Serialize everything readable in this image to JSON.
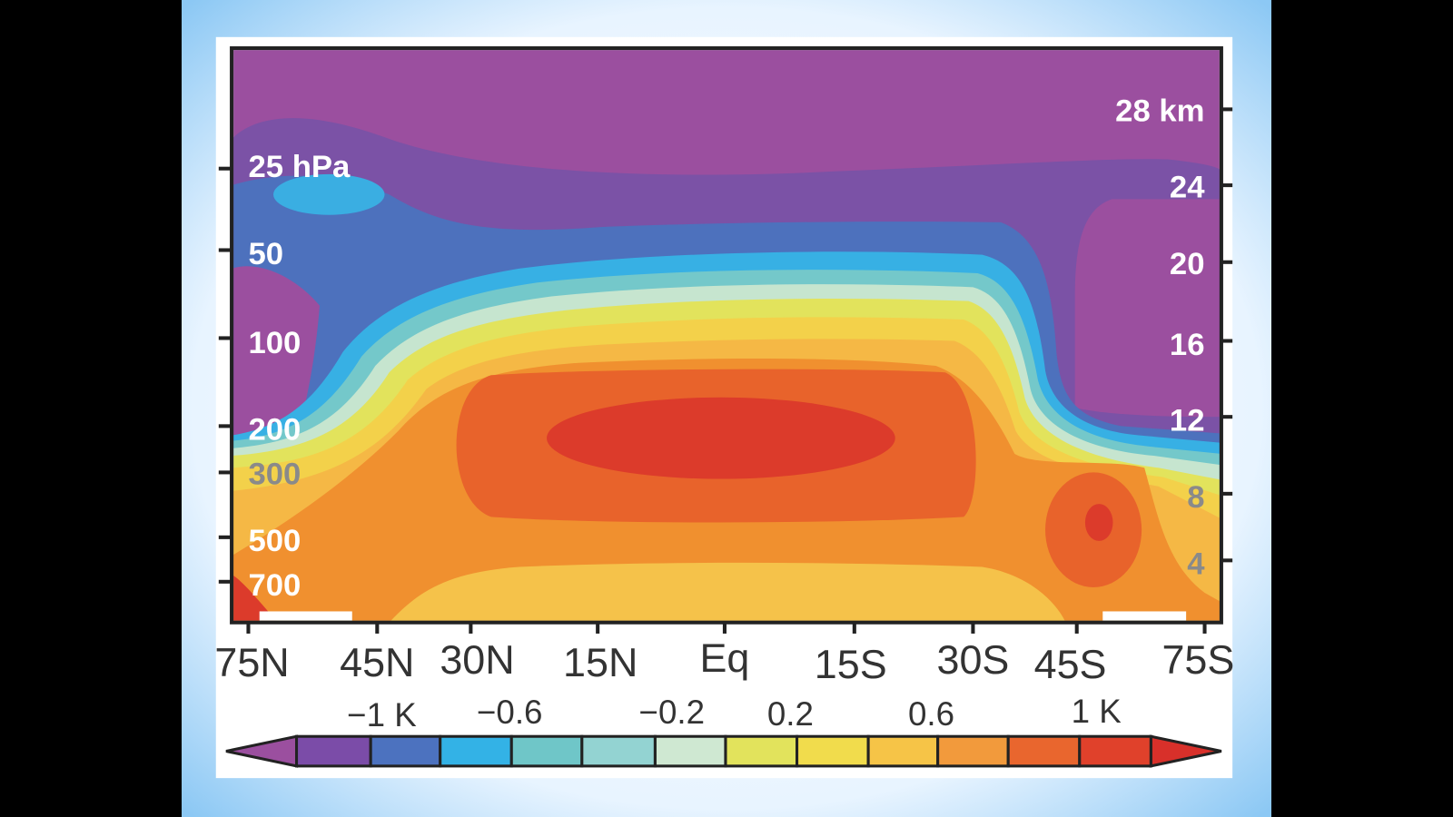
{
  "figure": {
    "left_axis_labels": [
      "25 hPa",
      "50",
      "100",
      "200",
      "300",
      "500",
      "700"
    ],
    "right_axis_labels": [
      "28 km",
      "24",
      "20",
      "16",
      "12",
      "8",
      "4"
    ],
    "x_labels": [
      "75N",
      "45N",
      "30N",
      "15N",
      "Eq",
      "15S",
      "30S",
      "45S",
      "75S"
    ],
    "colorbar_labels": [
      "−1 K",
      "−0.6",
      "−0.2",
      "0.2",
      "0.6",
      "1 K"
    ]
  }
}
